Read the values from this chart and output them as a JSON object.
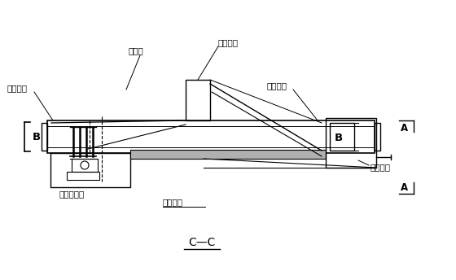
{
  "title": "C—C",
  "bg_color": "#ffffff",
  "line_color": "#000000",
  "labels": {
    "yi_jiao": "已浇梁段",
    "dai_jiao": "待浇梁段",
    "xie_la": "斜拉索",
    "xing_zou": "行走钉挂",
    "gong_zuo": "工作平台",
    "hou_mao": "后锡座系统",
    "ye_ya": "液压装置",
    "B_left": "B",
    "B_right": "B",
    "A_top": "A",
    "A_bot": "A"
  },
  "font_size": 7.5,
  "title_font_size": 10
}
